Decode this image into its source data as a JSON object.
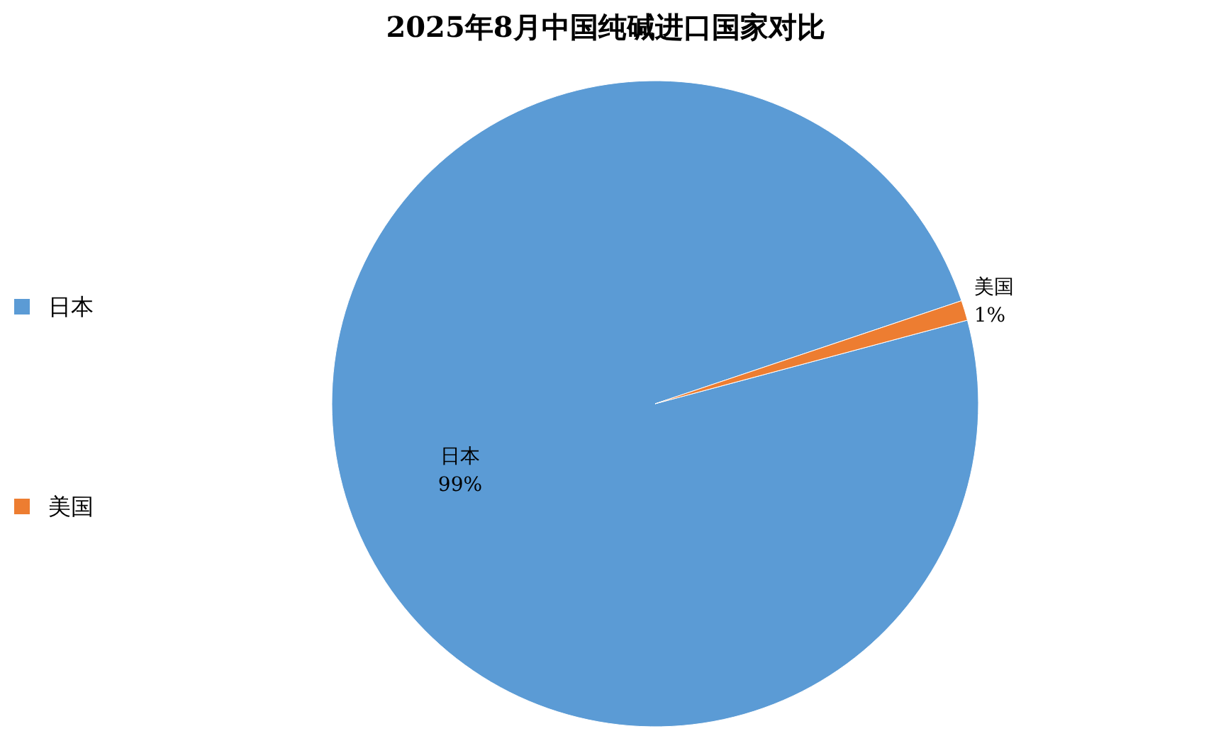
{
  "chart_data": {
    "type": "pie",
    "title": "2025年8月中国纯碱进口国家对比",
    "categories": [
      "日本",
      "美国"
    ],
    "values": [
      99,
      1
    ],
    "colors": [
      "#5b9bd5",
      "#ed7d31"
    ],
    "value_labels": [
      "99%",
      "1%"
    ],
    "legend": "left"
  }
}
